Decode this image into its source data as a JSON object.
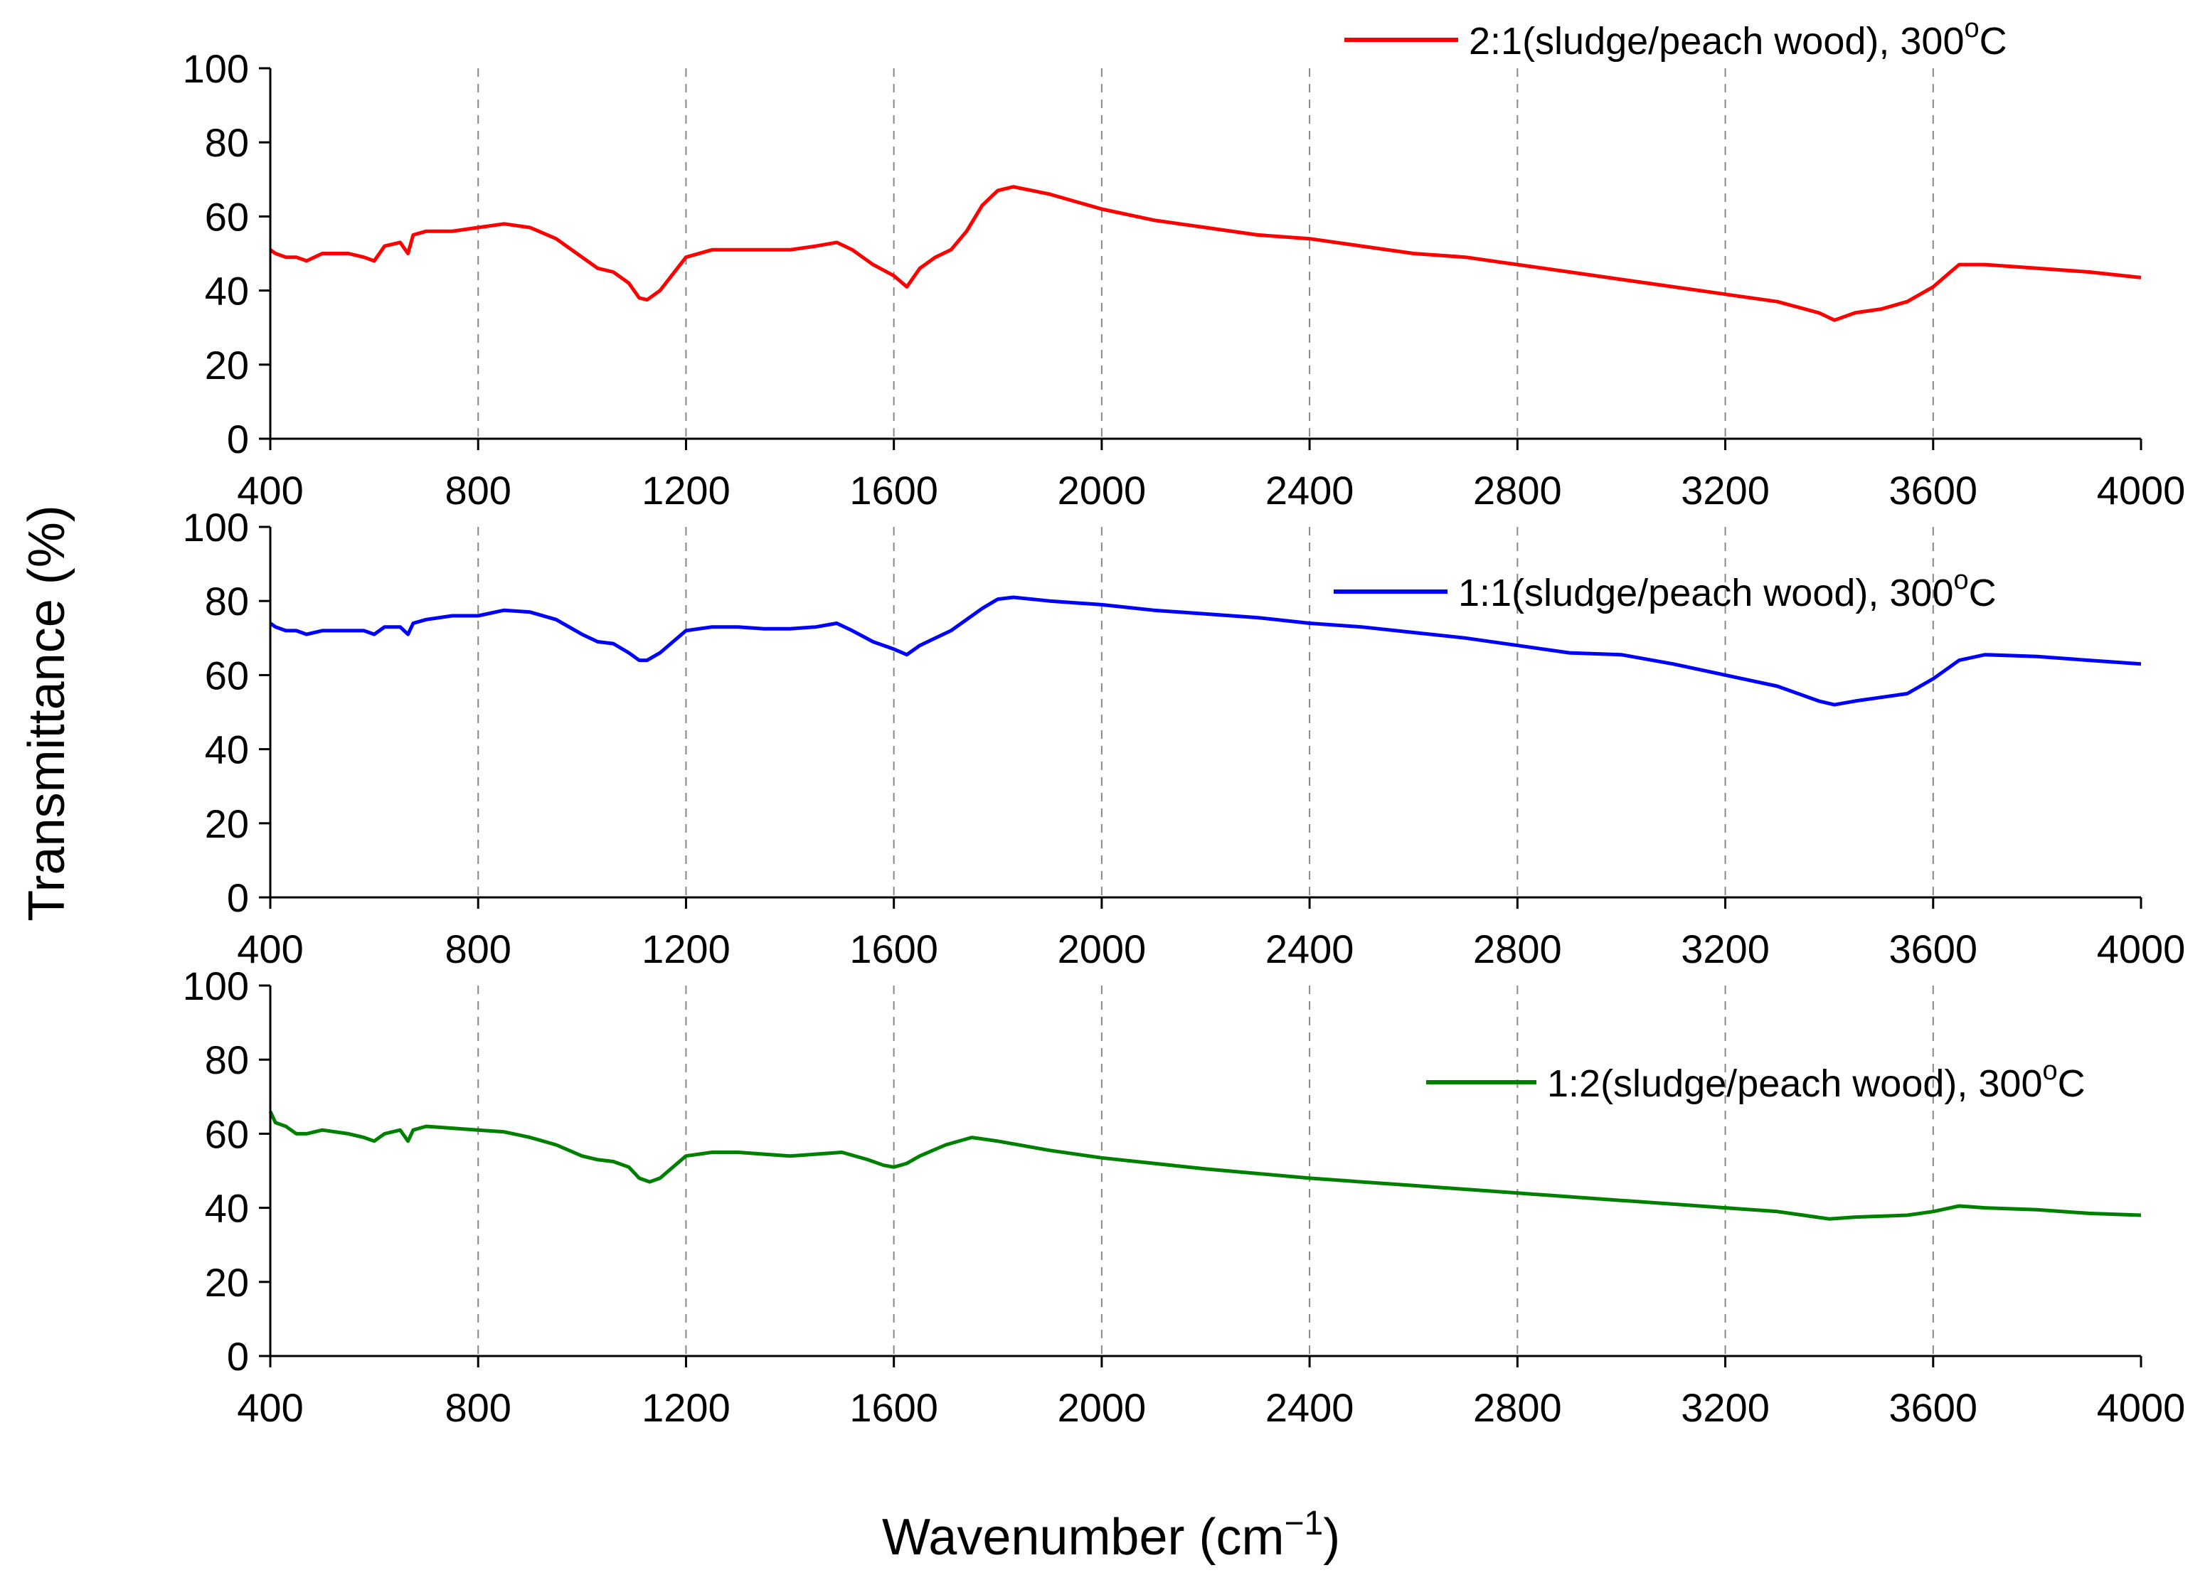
{
  "chart_data": {
    "type": "line",
    "xlabel": "Wavenumber (cm",
    "xlabel_sup": "−1",
    "xlabel_close": ")",
    "ylabel": "Transmittance (%)",
    "x_ticks": [
      400,
      800,
      1200,
      1600,
      2000,
      2400,
      2800,
      3200,
      3600,
      4000
    ],
    "y_ticks": [
      0,
      20,
      40,
      60,
      80,
      100
    ],
    "grid_x": [
      800,
      1200,
      1600,
      2000,
      2400,
      2800,
      3200,
      3600
    ],
    "xlim": [
      400,
      4000
    ],
    "ylim": [
      0,
      100
    ],
    "panels": [
      {
        "name": "2:1(sludge/peach wood), 300°C",
        "legend_text": "2:1(sludge/peach wood), 300",
        "legend_sup": "o",
        "legend_unit": "C",
        "color": "#ff0000",
        "x": [
          400,
          410,
          430,
          450,
          470,
          500,
          550,
          580,
          600,
          620,
          650,
          665,
          675,
          700,
          750,
          800,
          850,
          900,
          950,
          1000,
          1030,
          1060,
          1090,
          1110,
          1125,
          1150,
          1200,
          1250,
          1300,
          1350,
          1400,
          1450,
          1490,
          1520,
          1560,
          1600,
          1625,
          1650,
          1680,
          1710,
          1740,
          1770,
          1800,
          1830,
          1900,
          2000,
          2100,
          2200,
          2300,
          2400,
          2500,
          2600,
          2700,
          2800,
          2900,
          3000,
          3100,
          3200,
          3300,
          3380,
          3410,
          3450,
          3500,
          3550,
          3600,
          3650,
          3700,
          3800,
          3900,
          4000
        ],
        "y": [
          51,
          50,
          49,
          49,
          48,
          50,
          50,
          49,
          48,
          52,
          53,
          50,
          55,
          56,
          56,
          57,
          58,
          57,
          54,
          49,
          46,
          45,
          42,
          38,
          37.5,
          40,
          49,
          51,
          51,
          51,
          51,
          52,
          53,
          51,
          47,
          44,
          41,
          46,
          49,
          51,
          56,
          63,
          67,
          68,
          66,
          62,
          59,
          57,
          55,
          54,
          52,
          50,
          49,
          47,
          45,
          43,
          41,
          39,
          37,
          34,
          32,
          34,
          35,
          37,
          41,
          47,
          47,
          46,
          45,
          43.5
        ]
      },
      {
        "name": "1:1(sludge/peach wood), 300°C",
        "legend_text": "1:1(sludge/peach wood), 300",
        "legend_sup": "o",
        "legend_unit": "C",
        "color": "#0000ff",
        "x": [
          400,
          410,
          430,
          450,
          470,
          500,
          550,
          580,
          600,
          620,
          650,
          665,
          675,
          700,
          750,
          800,
          850,
          900,
          950,
          1000,
          1030,
          1060,
          1090,
          1110,
          1125,
          1150,
          1200,
          1250,
          1300,
          1350,
          1400,
          1450,
          1490,
          1520,
          1560,
          1600,
          1625,
          1650,
          1680,
          1710,
          1740,
          1770,
          1800,
          1830,
          1900,
          2000,
          2100,
          2200,
          2300,
          2400,
          2500,
          2600,
          2700,
          2800,
          2900,
          3000,
          3100,
          3200,
          3300,
          3380,
          3410,
          3450,
          3500,
          3550,
          3600,
          3650,
          3700,
          3800,
          3900,
          4000
        ],
        "y": [
          74,
          73,
          72,
          72,
          71,
          72,
          72,
          72,
          71,
          73,
          73,
          71,
          74,
          75,
          76,
          76,
          77.5,
          77,
          75,
          71,
          69,
          68.5,
          66,
          64,
          64,
          66,
          72,
          73,
          73,
          72.5,
          72.5,
          73,
          74,
          72,
          69,
          67,
          65.5,
          68,
          70,
          72,
          75,
          78,
          80.5,
          81,
          80,
          79,
          77.5,
          76.5,
          75.5,
          74,
          73,
          71.5,
          70,
          68,
          66,
          65.5,
          63,
          60,
          57,
          53,
          52,
          53,
          54,
          55,
          59,
          64,
          65.5,
          65,
          64,
          63
        ]
      },
      {
        "name": "1:2(sludge/peach wood), 300°C",
        "legend_text": "1:2(sludge/peach wood), 300",
        "legend_sup": "o",
        "legend_unit": "C",
        "color": "#008000",
        "x": [
          400,
          410,
          430,
          450,
          470,
          500,
          550,
          580,
          600,
          620,
          650,
          665,
          675,
          700,
          750,
          800,
          850,
          900,
          950,
          1000,
          1030,
          1060,
          1090,
          1110,
          1130,
          1150,
          1200,
          1250,
          1300,
          1350,
          1400,
          1450,
          1500,
          1550,
          1580,
          1600,
          1625,
          1650,
          1700,
          1750,
          1800,
          1900,
          2000,
          2200,
          2400,
          2600,
          2800,
          3000,
          3200,
          3300,
          3400,
          3450,
          3550,
          3600,
          3650,
          3700,
          3800,
          3900,
          4000
        ],
        "y": [
          66,
          63,
          62,
          60,
          60,
          61,
          60,
          59,
          58,
          60,
          61,
          58,
          61,
          62,
          61.5,
          61,
          60.5,
          59,
          57,
          54,
          53,
          52.5,
          51,
          48,
          47,
          48,
          54,
          55,
          55,
          54.5,
          54,
          54.5,
          55,
          53,
          51.5,
          51,
          52,
          54,
          57,
          59,
          58,
          55.5,
          53.5,
          50.5,
          48,
          46,
          44,
          42,
          40,
          39,
          37,
          37.5,
          38,
          39,
          40.5,
          40,
          39.5,
          38.5,
          38
        ]
      }
    ]
  }
}
